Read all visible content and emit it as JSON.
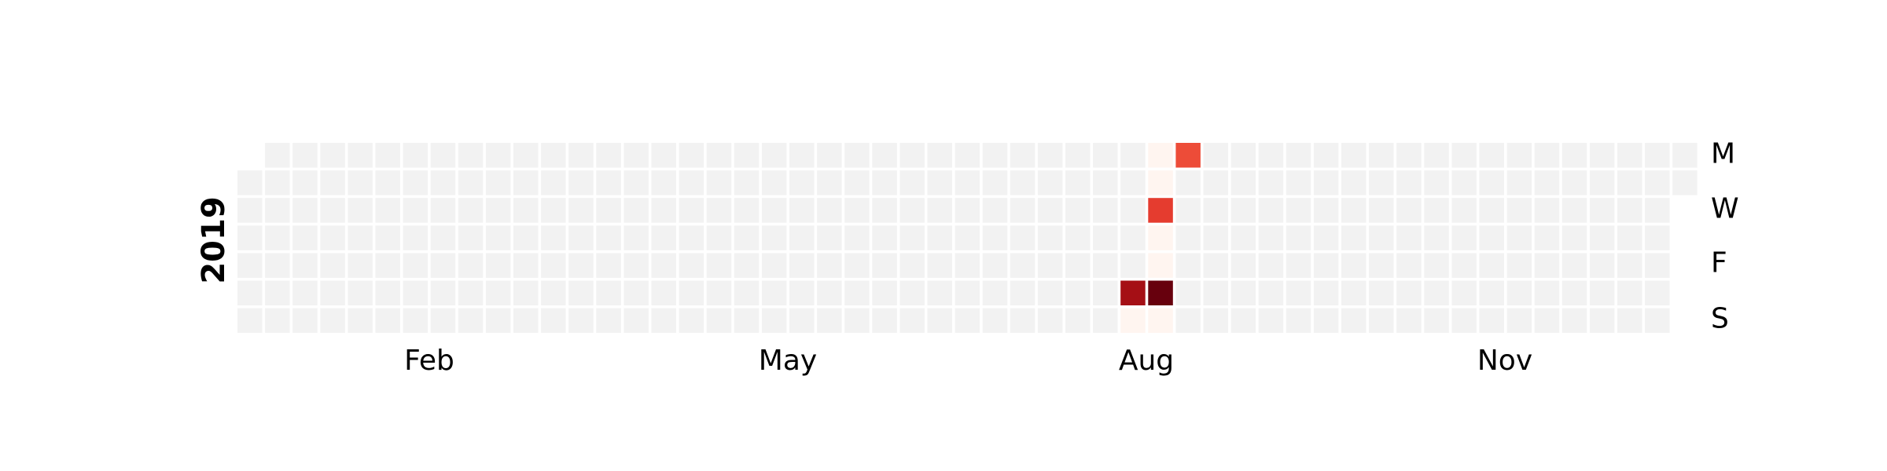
{
  "chart_data": {
    "type": "heatmap",
    "title": "",
    "year_label": "2019",
    "x_tick_labels": [
      "Feb",
      "May",
      "Aug",
      "Nov"
    ],
    "y_tick_labels": [
      "M",
      "W",
      "F",
      "S"
    ],
    "grid": false,
    "legend": "none",
    "colors": {
      "empty": "#f2f2f2",
      "zero": "#fff5f0",
      "cell_border": "#ffffff",
      "scale": [
        "#fff5f0",
        "#fcbba1",
        "#fb6a4a",
        "#de2d26",
        "#a50f15",
        "#67000d"
      ]
    },
    "vmax": 4,
    "data": [
      {
        "date": "2019-08-17",
        "value": 3.2
      },
      {
        "date": "2019-08-18",
        "value": 0
      },
      {
        "date": "2019-08-19",
        "value": 0
      },
      {
        "date": "2019-08-20",
        "value": 0
      },
      {
        "date": "2019-08-21",
        "value": 2.2
      },
      {
        "date": "2019-08-22",
        "value": 0
      },
      {
        "date": "2019-08-23",
        "value": 0
      },
      {
        "date": "2019-08-24",
        "value": 4.0
      },
      {
        "date": "2019-08-25",
        "value": 0
      },
      {
        "date": "2019-08-26",
        "value": 2.0
      }
    ]
  }
}
